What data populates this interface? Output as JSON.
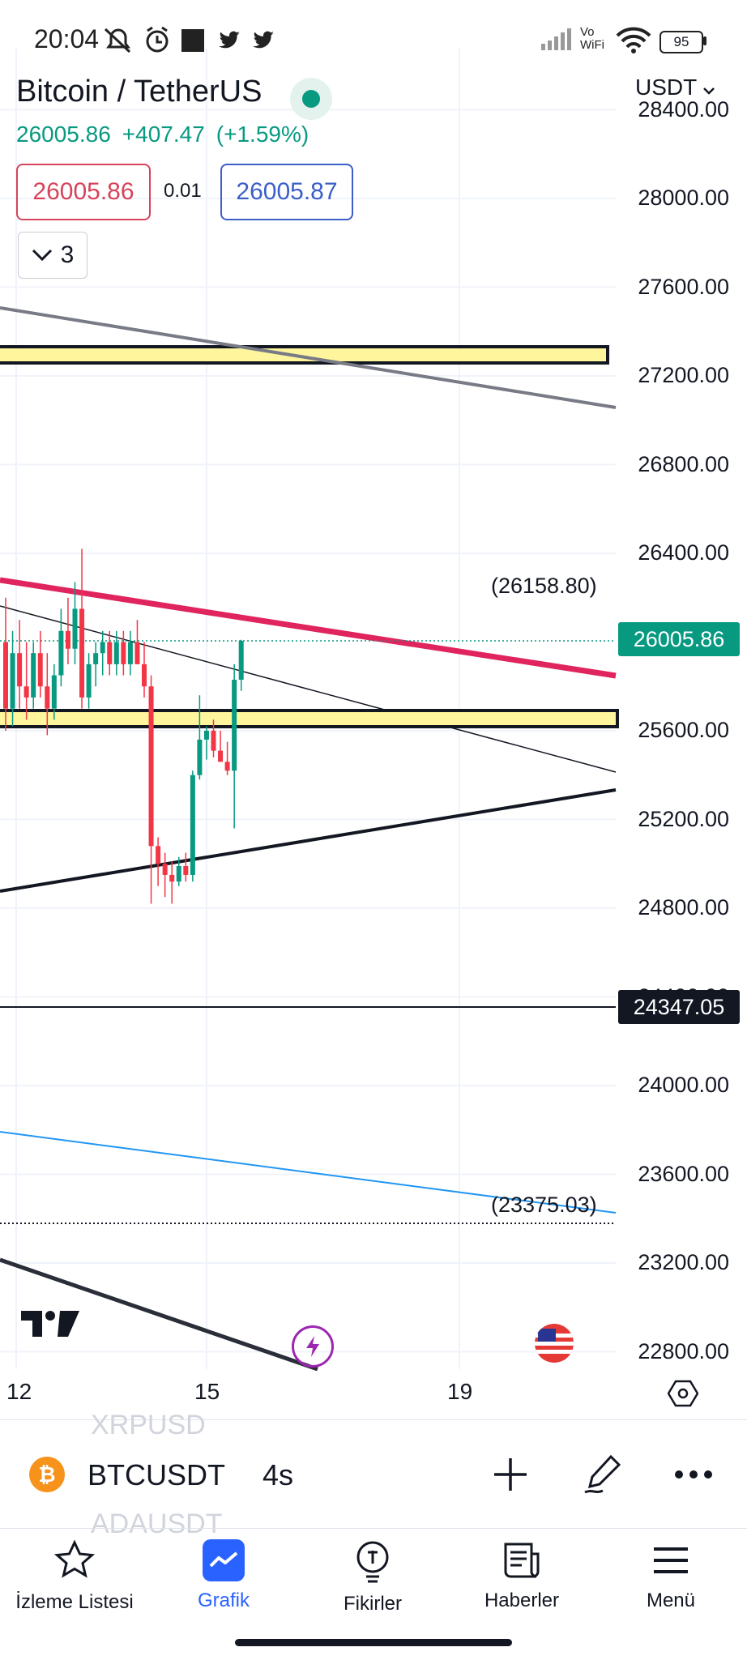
{
  "status_bar": {
    "time": "20:04",
    "network": "Vo WiFi",
    "battery": "95"
  },
  "header": {
    "title": "Bitcoin / TetherUS",
    "last_price": "26005.86",
    "change": "+407.47",
    "change_percent": "(+1.59%)",
    "bid": "26005.86",
    "spread": "0.01",
    "ask": "26005.87",
    "collapsed_count": "3",
    "currency": "USDT"
  },
  "price_axis": {
    "labels": [
      "28400.00",
      "28000.00",
      "27600.00",
      "27200.00",
      "26800.00",
      "26400.00",
      "25600.00",
      "25200.00",
      "24800.00",
      "24400.00",
      "24000.00",
      "23600.00",
      "23200.00",
      "22800.00"
    ],
    "last_price_tag": "26005.86",
    "level_tag": "24347.05"
  },
  "annotations": {
    "high_label": "(26158.80)",
    "low_label": "(23375.03)"
  },
  "date_axis": {
    "labels": [
      "12",
      "15",
      "19"
    ]
  },
  "toolbar": {
    "ticker": "BTCUSDT",
    "interval": "4s",
    "prev_symbol": "XRPUSD",
    "next_symbol": "ADAUSDT"
  },
  "nav": {
    "watchlist": "İzleme Listesi",
    "chart": "Grafik",
    "ideas": "Fikirler",
    "news": "Haberler",
    "menu": "Menü"
  },
  "colors": {
    "up": "#089981",
    "down": "#f23645",
    "trendline_red": "#e0245e",
    "zone_fill": "#fff59d",
    "accent": "#2962ff"
  },
  "chart_data": {
    "type": "candlestick",
    "candles": [
      {
        "o": 26000,
        "h": 26200,
        "l": 25600,
        "c": 25700
      },
      {
        "o": 25700,
        "h": 26050,
        "l": 25620,
        "c": 25950
      },
      {
        "o": 25950,
        "h": 26100,
        "l": 25700,
        "c": 25800
      },
      {
        "o": 25800,
        "h": 26000,
        "l": 25650,
        "c": 25750
      },
      {
        "o": 25750,
        "h": 26000,
        "l": 25700,
        "c": 25950
      },
      {
        "o": 25950,
        "h": 26050,
        "l": 25750,
        "c": 25800
      },
      {
        "o": 25800,
        "h": 25950,
        "l": 25580,
        "c": 25700
      },
      {
        "o": 25700,
        "h": 25900,
        "l": 25650,
        "c": 25850
      },
      {
        "o": 25850,
        "h": 26150,
        "l": 25800,
        "c": 26050
      },
      {
        "o": 26050,
        "h": 26200,
        "l": 25900,
        "c": 25970
      },
      {
        "o": 25970,
        "h": 26270,
        "l": 25900,
        "c": 26150
      },
      {
        "o": 26150,
        "h": 26420,
        "l": 25700,
        "c": 25750
      },
      {
        "o": 25750,
        "h": 25950,
        "l": 25700,
        "c": 25900
      },
      {
        "o": 25900,
        "h": 26000,
        "l": 25800,
        "c": 25950
      },
      {
        "o": 25950,
        "h": 26050,
        "l": 25850,
        "c": 26000
      },
      {
        "o": 26000,
        "h": 26050,
        "l": 25850,
        "c": 25900
      },
      {
        "o": 25900,
        "h": 26050,
        "l": 25850,
        "c": 26000
      },
      {
        "o": 26000,
        "h": 26050,
        "l": 25850,
        "c": 25900
      },
      {
        "o": 25900,
        "h": 26050,
        "l": 25850,
        "c": 26000
      },
      {
        "o": 26000,
        "h": 26100,
        "l": 25900,
        "c": 25900
      },
      {
        "o": 25900,
        "h": 26000,
        "l": 25750,
        "c": 25800
      },
      {
        "o": 25800,
        "h": 25850,
        "l": 24820,
        "c": 25080
      },
      {
        "o": 25080,
        "h": 25120,
        "l": 24900,
        "c": 25000
      },
      {
        "o": 25000,
        "h": 25050,
        "l": 24850,
        "c": 24950
      },
      {
        "o": 24950,
        "h": 25010,
        "l": 24820,
        "c": 24920
      },
      {
        "o": 24920,
        "h": 25030,
        "l": 24900,
        "c": 24990
      },
      {
        "o": 24990,
        "h": 25050,
        "l": 24920,
        "c": 24950
      },
      {
        "o": 24950,
        "h": 25420,
        "l": 24920,
        "c": 25400
      },
      {
        "o": 25400,
        "h": 25760,
        "l": 25380,
        "c": 25560
      },
      {
        "o": 25560,
        "h": 25620,
        "l": 25470,
        "c": 25600
      },
      {
        "o": 25600,
        "h": 25650,
        "l": 25480,
        "c": 25510
      },
      {
        "o": 25510,
        "h": 25600,
        "l": 25460,
        "c": 25460
      },
      {
        "o": 25460,
        "h": 25550,
        "l": 25400,
        "c": 25420
      },
      {
        "o": 25420,
        "h": 25900,
        "l": 25160,
        "c": 25830
      },
      {
        "o": 25830,
        "h": 26010,
        "l": 25780,
        "c": 26005
      }
    ],
    "ylim": [
      22700,
      28500
    ]
  }
}
